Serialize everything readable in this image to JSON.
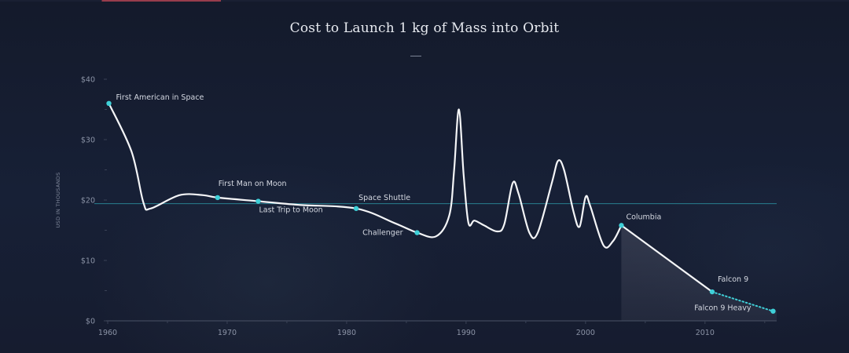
{
  "colors": {
    "line": "#f4f5f7",
    "marker": "#3fd0d8",
    "reference_line": "#2b8a9a",
    "reference_label": "#bcd3da",
    "axis": "#4a5266",
    "grid_tick": "#3a4256",
    "shade": "#5c6072"
  },
  "chart_data": {
    "type": "line",
    "title": "Cost to Launch 1 kg of Mass into Orbit",
    "ylabel": "USD IN THOUSANDS",
    "xlabel": "",
    "xlim": [
      1960,
      2016
    ],
    "ylim": [
      0,
      40
    ],
    "x_ticks": [
      1960,
      1970,
      1980,
      1990,
      2000,
      2010
    ],
    "x_tick_labels": [
      "1960",
      "1970",
      "1980",
      "1990",
      "2000",
      "2010"
    ],
    "y_ticks": [
      0,
      10,
      20,
      30,
      40
    ],
    "y_tick_labels": [
      "$0",
      "$10",
      "$20",
      "$30",
      "$40"
    ],
    "grid": false,
    "series": [
      {
        "values": [
          [
            1960.1,
            36.0
          ],
          [
            1962.0,
            28.0
          ],
          [
            1963.0,
            19.5
          ],
          [
            1963.6,
            18.6
          ],
          [
            1966.0,
            20.8
          ],
          [
            1968.0,
            20.8
          ],
          [
            1969.2,
            20.4
          ],
          [
            1972.6,
            19.8
          ],
          [
            1976.0,
            19.2
          ],
          [
            1980.8,
            18.6
          ],
          [
            1984.0,
            16.2
          ],
          [
            1985.9,
            14.6
          ],
          [
            1987.5,
            14.0
          ],
          [
            1988.6,
            17.5
          ],
          [
            1989.0,
            25.0
          ],
          [
            1989.4,
            35.0
          ],
          [
            1989.8,
            24.0
          ],
          [
            1990.2,
            16.2
          ],
          [
            1990.7,
            16.6
          ],
          [
            1991.5,
            15.8
          ],
          [
            1992.6,
            14.8
          ],
          [
            1993.2,
            16.0
          ],
          [
            1993.9,
            22.8
          ],
          [
            1994.4,
            21.0
          ],
          [
            1995.3,
            14.6
          ],
          [
            1996.0,
            14.6
          ],
          [
            1997.2,
            23.0
          ],
          [
            1997.7,
            26.5
          ],
          [
            1998.2,
            25.0
          ],
          [
            1999.0,
            18.0
          ],
          [
            1999.5,
            15.6
          ],
          [
            2000.0,
            20.5
          ],
          [
            2000.4,
            19.0
          ],
          [
            2001.5,
            12.5
          ],
          [
            2002.3,
            13.2
          ],
          [
            2003.0,
            15.8
          ],
          [
            2010.6,
            4.8
          ]
        ]
      },
      {
        "values": [
          [
            2010.6,
            4.8
          ],
          [
            2015.7,
            1.6
          ]
        ]
      }
    ],
    "reference_lines": [
      {
        "y": 19.4,
        "label": "Space Shuttle",
        "label_x": 1981.0
      }
    ],
    "shaded_regions": [
      {
        "x_start": 2003.0,
        "x_end": 2016.0,
        "note": "area below line after Columbia"
      }
    ],
    "annotations": [
      {
        "label": "First American in Space",
        "x": 1960.1,
        "y": 36.0
      },
      {
        "label": "First Man on Moon",
        "x": 1969.2,
        "y": 20.4
      },
      {
        "label": "Last Trip to Moon",
        "x": 1972.6,
        "y": 19.8
      },
      {
        "label": "Space Shuttle",
        "x": 1980.8,
        "y": 18.6
      },
      {
        "label": "Challenger",
        "x": 1985.9,
        "y": 14.6
      },
      {
        "label": "Columbia",
        "x": 2003.0,
        "y": 15.8
      },
      {
        "label": "Falcon 9",
        "x": 2010.6,
        "y": 4.8
      },
      {
        "label": "Falcon 9 Heavy",
        "x": 2015.7,
        "y": 1.6
      }
    ]
  }
}
